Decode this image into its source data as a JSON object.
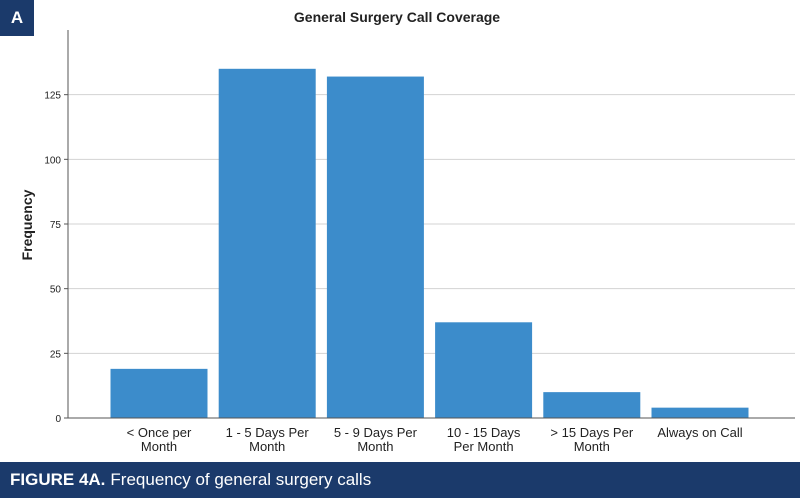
{
  "panel_label": "A",
  "caption": {
    "label": "FIGURE 4A.",
    "text": "Frequency of general surgery calls"
  },
  "chart_data": {
    "type": "bar",
    "title": "General Surgery Call Coverage",
    "xlabel": "",
    "ylabel": "Frequency",
    "ylim": [
      0,
      150
    ],
    "yticks": [
      0,
      25,
      50,
      75,
      100,
      125
    ],
    "grid": "horizontal",
    "categories": [
      [
        "< Once per",
        "Month"
      ],
      [
        "1 - 5 Days Per",
        "Month"
      ],
      [
        "5 - 9 Days Per",
        "Month"
      ],
      [
        "10 - 15 Days",
        "Per Month"
      ],
      [
        "> 15 Days Per",
        "Month"
      ],
      [
        "Always on Call"
      ]
    ],
    "values": [
      19,
      135,
      132,
      37,
      10,
      4
    ],
    "bar_color": "#3c8ccb",
    "grid_color": "#d3d3d3",
    "badge_color": "#1b3a6b"
  }
}
